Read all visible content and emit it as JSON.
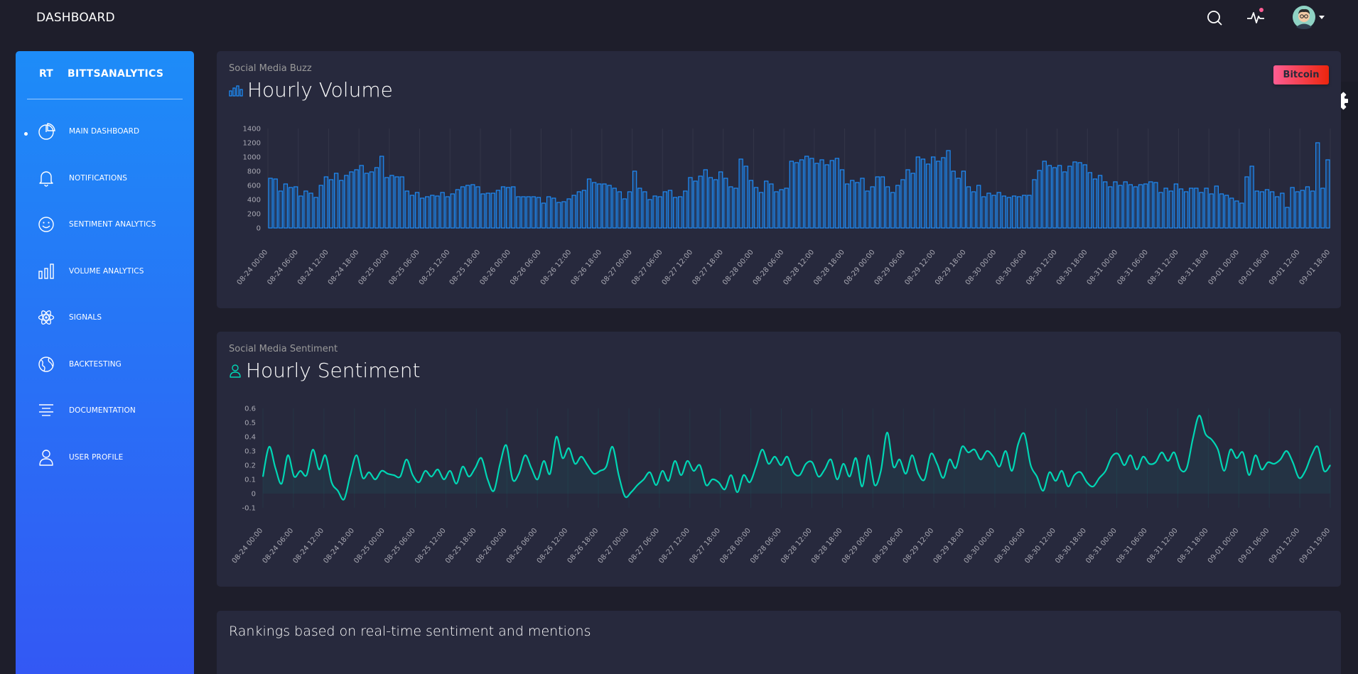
{
  "header": {
    "title": "DASHBOARD",
    "icons": [
      "search-icon",
      "activity-icon",
      "avatar"
    ]
  },
  "sidebar": {
    "logo_mini": "RT",
    "logo_full": "BITTSANALYTICS",
    "items": [
      {
        "label": "MAIN DASHBOARD",
        "icon": "chart-pie-icon",
        "active": true
      },
      {
        "label": "NOTIFICATIONS",
        "icon": "bell-icon",
        "active": false
      },
      {
        "label": "SENTIMENT ANALYTICS",
        "icon": "smiley-icon",
        "active": false
      },
      {
        "label": "VOLUME ANALYTICS",
        "icon": "bar-chart-icon",
        "active": false
      },
      {
        "label": "SIGNALS",
        "icon": "atom-icon",
        "active": false
      },
      {
        "label": "BACKTESTING",
        "icon": "globe-icon",
        "active": false
      },
      {
        "label": "DOCUMENTATION",
        "icon": "align-center-icon",
        "active": false
      },
      {
        "label": "USER PROFILE",
        "icon": "user-icon",
        "active": false
      }
    ]
  },
  "volume_card": {
    "category": "Social Media Buzz",
    "title": "Hourly Volume",
    "button": "Bitcoin"
  },
  "sentiment_card": {
    "category": "Social Media Sentiment",
    "title": "Hourly Sentiment"
  },
  "rankings_card": {
    "title": "Rankings based on real-time sentiment and mentions"
  },
  "colors": {
    "accent_blue": "#1d8cf8",
    "accent_teal": "#00d6b4",
    "danger": "#fd5d93"
  },
  "chart_data": [
    {
      "type": "bar",
      "title": "Hourly Volume",
      "ylim": [
        0,
        1400
      ],
      "yticks": [
        0,
        200,
        400,
        600,
        800,
        1000,
        1200,
        1400
      ],
      "xtick_labels": [
        "08-24 00:00",
        "08-24 06:00",
        "08-24 12:00",
        "08-24 18:00",
        "08-25 00:00",
        "08-25 06:00",
        "08-25 12:00",
        "08-25 18:00",
        "08-26 00:00",
        "08-26 06:00",
        "08-26 12:00",
        "08-26 18:00",
        "08-27 00:00",
        "08-27 06:00",
        "08-27 12:00",
        "08-27 18:00",
        "08-28 00:00",
        "08-28 06:00",
        "08-28 12:00",
        "08-28 18:00",
        "08-29 00:00",
        "08-29 06:00",
        "08-29 12:00",
        "08-29 18:00",
        "08-30 00:00",
        "08-30 06:00",
        "08-30 12:00",
        "08-30 18:00",
        "08-31 00:00",
        "08-31 06:00",
        "08-31 12:00",
        "08-31 18:00",
        "09-01 00:00",
        "09-01 06:00",
        "09-01 12:00",
        "09-01 18:00"
      ],
      "values": [
        700,
        690,
        520,
        620,
        570,
        580,
        450,
        520,
        490,
        430,
        600,
        720,
        680,
        770,
        670,
        740,
        790,
        820,
        880,
        770,
        790,
        850,
        1010,
        710,
        740,
        720,
        720,
        520,
        460,
        500,
        420,
        440,
        460,
        450,
        500,
        440,
        480,
        540,
        580,
        600,
        610,
        580,
        480,
        490,
        490,
        530,
        580,
        570,
        580,
        440,
        440,
        440,
        440,
        430,
        350,
        440,
        420,
        360,
        370,
        410,
        460,
        510,
        530,
        690,
        640,
        620,
        620,
        600,
        560,
        510,
        410,
        510,
        800,
        560,
        510,
        400,
        450,
        440,
        510,
        530,
        430,
        440,
        520,
        710,
        660,
        730,
        820,
        710,
        680,
        790,
        700,
        580,
        560,
        970,
        870,
        670,
        570,
        500,
        660,
        620,
        510,
        540,
        560,
        940,
        920,
        960,
        1010,
        980,
        910,
        960,
        890,
        950,
        980,
        820,
        620,
        670,
        640,
        700,
        520,
        580,
        720,
        720,
        580,
        500,
        600,
        680,
        820,
        770,
        1000,
        970,
        900,
        1000,
        940,
        990,
        1090,
        800,
        700,
        800,
        580,
        510,
        600,
        440,
        490,
        460,
        500,
        450,
        430,
        450,
        440,
        460,
        460,
        680,
        810,
        940,
        880,
        850,
        880,
        790,
        870,
        930,
        920,
        890,
        780,
        690,
        740,
        650,
        580,
        650,
        600,
        650,
        610,
        580,
        610,
        620,
        650,
        640,
        500,
        560,
        520,
        620,
        550,
        510,
        560,
        560,
        500,
        560,
        480,
        590,
        480,
        460,
        420,
        380,
        350,
        720,
        870,
        520,
        510,
        540,
        510,
        440,
        490,
        290,
        570,
        510,
        530,
        580,
        520,
        1200,
        560,
        960
      ]
    },
    {
      "type": "line",
      "title": "Hourly Sentiment",
      "ylim": [
        -0.1,
        0.6
      ],
      "yticks": [
        -0.1,
        0,
        0.1,
        0.2,
        0.3,
        0.4,
        0.5,
        0.6
      ],
      "xtick_labels": [
        "08-24 00:00",
        "08-24 06:00",
        "08-24 12:00",
        "08-24 18:00",
        "08-25 00:00",
        "08-25 06:00",
        "08-25 12:00",
        "08-25 18:00",
        "08-26 00:00",
        "08-26 06:00",
        "08-26 12:00",
        "08-26 18:00",
        "08-27 00:00",
        "08-27 06:00",
        "08-27 12:00",
        "08-27 18:00",
        "08-28 00:00",
        "08-28 06:00",
        "08-28 12:00",
        "08-28 18:00",
        "08-29 00:00",
        "08-29 06:00",
        "08-29 12:00",
        "08-29 18:00",
        "08-30 00:00",
        "08-30 06:00",
        "08-30 12:00",
        "08-30 18:00",
        "08-31 00:00",
        "08-31 06:00",
        "08-31 12:00",
        "08-31 18:00",
        "09-01 00:00",
        "09-01 06:00",
        "09-01 12:00",
        "09-01 19:00"
      ],
      "values": [
        0.12,
        0.33,
        0.18,
        0.07,
        0.27,
        0.12,
        0.16,
        0.13,
        0.31,
        0.17,
        0.27,
        0.08,
        0.02,
        -0.04,
        0.13,
        0.27,
        0.11,
        0.15,
        0.1,
        0.16,
        0.14,
        0.13,
        0.12,
        0.24,
        0.13,
        0.08,
        0.16,
        0.12,
        0.17,
        0.1,
        0.16,
        0.07,
        0.19,
        0.12,
        0.18,
        0.25,
        0.1,
        0.02,
        0.21,
        0.34,
        0.1,
        0.14,
        0.27,
        0.18,
        0.1,
        0.23,
        0.14,
        0.4,
        0.25,
        0.32,
        0.21,
        0.26,
        0.2,
        0.14,
        0.16,
        0.19,
        0.33,
        0.13,
        -0.02,
        0.01,
        0.06,
        0.1,
        0.15,
        0.06,
        0.16,
        0.09,
        0.23,
        0.13,
        0.23,
        0.16,
        0.2,
        0.06,
        0.1,
        0.08,
        0.03,
        0.13,
        0.01,
        0.13,
        0.08,
        0.19,
        0.31,
        0.21,
        0.26,
        0.2,
        0.26,
        0.15,
        0.13,
        0.21,
        0.22,
        0.12,
        0.17,
        0.24,
        0.1,
        0.21,
        0.12,
        0.25,
        0.05,
        0.27,
        0.06,
        0.16,
        0.43,
        0.19,
        0.24,
        0.14,
        0.27,
        0.14,
        0.1,
        0.28,
        0.21,
        0.11,
        0.24,
        0.18,
        0.33,
        0.29,
        0.31,
        0.24,
        0.3,
        0.26,
        0.19,
        0.3,
        0.16,
        0.35,
        0.42,
        0.2,
        0.12,
        0.02,
        0.15,
        0.09,
        0.16,
        0.05,
        0.13,
        0.15,
        0.08,
        0.05,
        0.11,
        0.16,
        0.26,
        0.28,
        0.2,
        0.27,
        0.17,
        0.26,
        0.21,
        0.22,
        0.29,
        0.23,
        0.29,
        0.17,
        0.18,
        0.39,
        0.55,
        0.42,
        0.38,
        0.31,
        0.16,
        0.31,
        0.25,
        0.29,
        0.13,
        0.27,
        0.17,
        0.22,
        0.21,
        0.24,
        0.3,
        0.22,
        0.11,
        0.16,
        0.27,
        0.33,
        0.16,
        0.2
      ]
    }
  ]
}
